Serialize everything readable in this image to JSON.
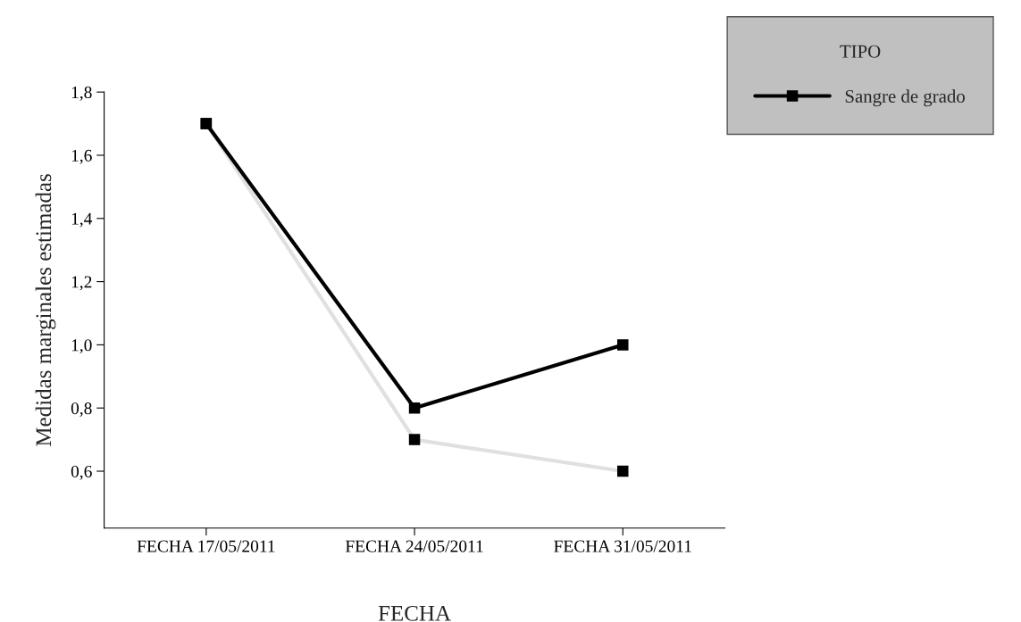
{
  "chart_data": {
    "type": "line",
    "xlabel": "FECHA",
    "ylabel": "Medidas marginales estimadas",
    "legend_title": "TIPO",
    "categories": [
      "FECHA 17/05/2011",
      "FECHA 24/05/2011",
      "FECHA 31/05/2011"
    ],
    "series": [
      {
        "color": "#e0e0e0",
        "values": [
          1.7,
          0.7,
          0.6
        ]
      },
      {
        "name": "Sangre de grado",
        "color": "#000000",
        "values": [
          1.7,
          0.8,
          1.0
        ]
      }
    ],
    "ylim": [
      0.42,
      1.8
    ],
    "yticks": [
      {
        "value": 0.6,
        "label": "0,6"
      },
      {
        "value": 0.8,
        "label": "0,8"
      },
      {
        "value": 1.0,
        "label": "1,0"
      },
      {
        "value": 1.2,
        "label": "1,2"
      },
      {
        "value": 1.4,
        "label": "1,4"
      },
      {
        "value": 1.6,
        "label": "1,6"
      },
      {
        "value": 1.8,
        "label": "1,8"
      }
    ],
    "grid": false,
    "legend": "top right",
    "marker": "square",
    "line_style": "solid"
  }
}
